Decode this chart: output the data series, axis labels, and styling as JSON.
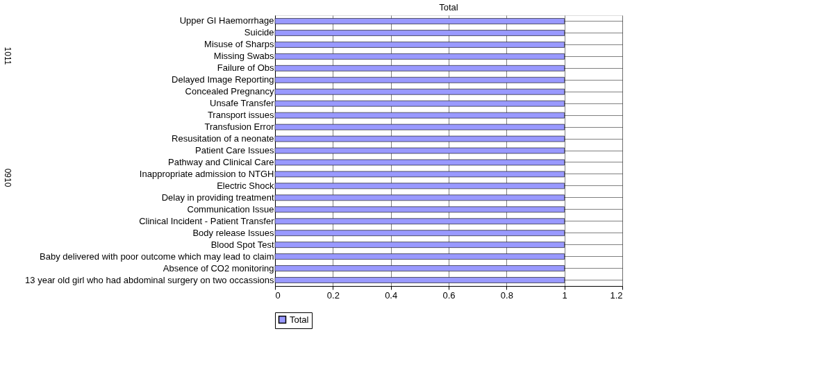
{
  "chart_data": {
    "type": "bar",
    "orientation": "horizontal",
    "title": "Total",
    "categories": [
      "Upper GI Haemorrhage",
      "Suicide",
      "Misuse of Sharps",
      "Missing Swabs",
      "Failure of Obs",
      "Delayed Image Reporting",
      "Concealed Pregnancy",
      "Unsafe Transfer",
      "Transport issues",
      "Transfusion Error",
      "Resusitation of a neonate",
      "Patient Care Issues",
      "Pathway and Clinical Care",
      "Inappropriate admission to NTGH",
      "Electric Shock",
      "Delay in providing treatment",
      "Communication Issue",
      "Clinical Incident - Patient Transfer",
      "Body release Issues",
      "Blood Spot Test",
      "Baby delivered with poor outcome which may lead to claim",
      "Absence of CO2 monitoring",
      "13 year old girl who had abdominal surgery on two occassions"
    ],
    "series": [
      {
        "name": "Total",
        "color": "#9999ff",
        "values": [
          1,
          1,
          1,
          1,
          1,
          1,
          1,
          1,
          1,
          1,
          1,
          1,
          1,
          1,
          1,
          1,
          1,
          1,
          1,
          1,
          1,
          1,
          1
        ]
      }
    ],
    "xlim": [
      0,
      1.2
    ],
    "xticks": [
      0,
      0.2,
      0.4,
      0.6,
      0.8,
      1,
      1.2
    ],
    "grid": "x",
    "legend": "bottom",
    "annotations": [
      "1011",
      "0910"
    ]
  }
}
